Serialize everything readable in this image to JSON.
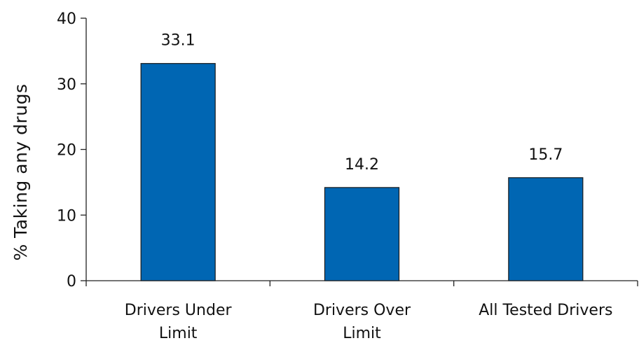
{
  "chart_data": {
    "type": "bar",
    "categories": [
      [
        "Drivers Under",
        "Limit"
      ],
      [
        "Drivers Over",
        "Limit"
      ],
      [
        "All Tested Drivers"
      ]
    ],
    "values": [
      33.1,
      14.2,
      15.7
    ],
    "data_labels": [
      "33.1",
      "14.2",
      "15.7"
    ],
    "title": "",
    "xlabel": "",
    "ylabel": "% Taking any drugs",
    "ylim": [
      0,
      40
    ],
    "yticks": [
      0,
      10,
      20,
      30,
      40
    ],
    "ytick_labels": [
      "0",
      "10",
      "20",
      "30",
      "40"
    ],
    "grid": false,
    "legend": "none",
    "bar_color": "#0066b3"
  }
}
